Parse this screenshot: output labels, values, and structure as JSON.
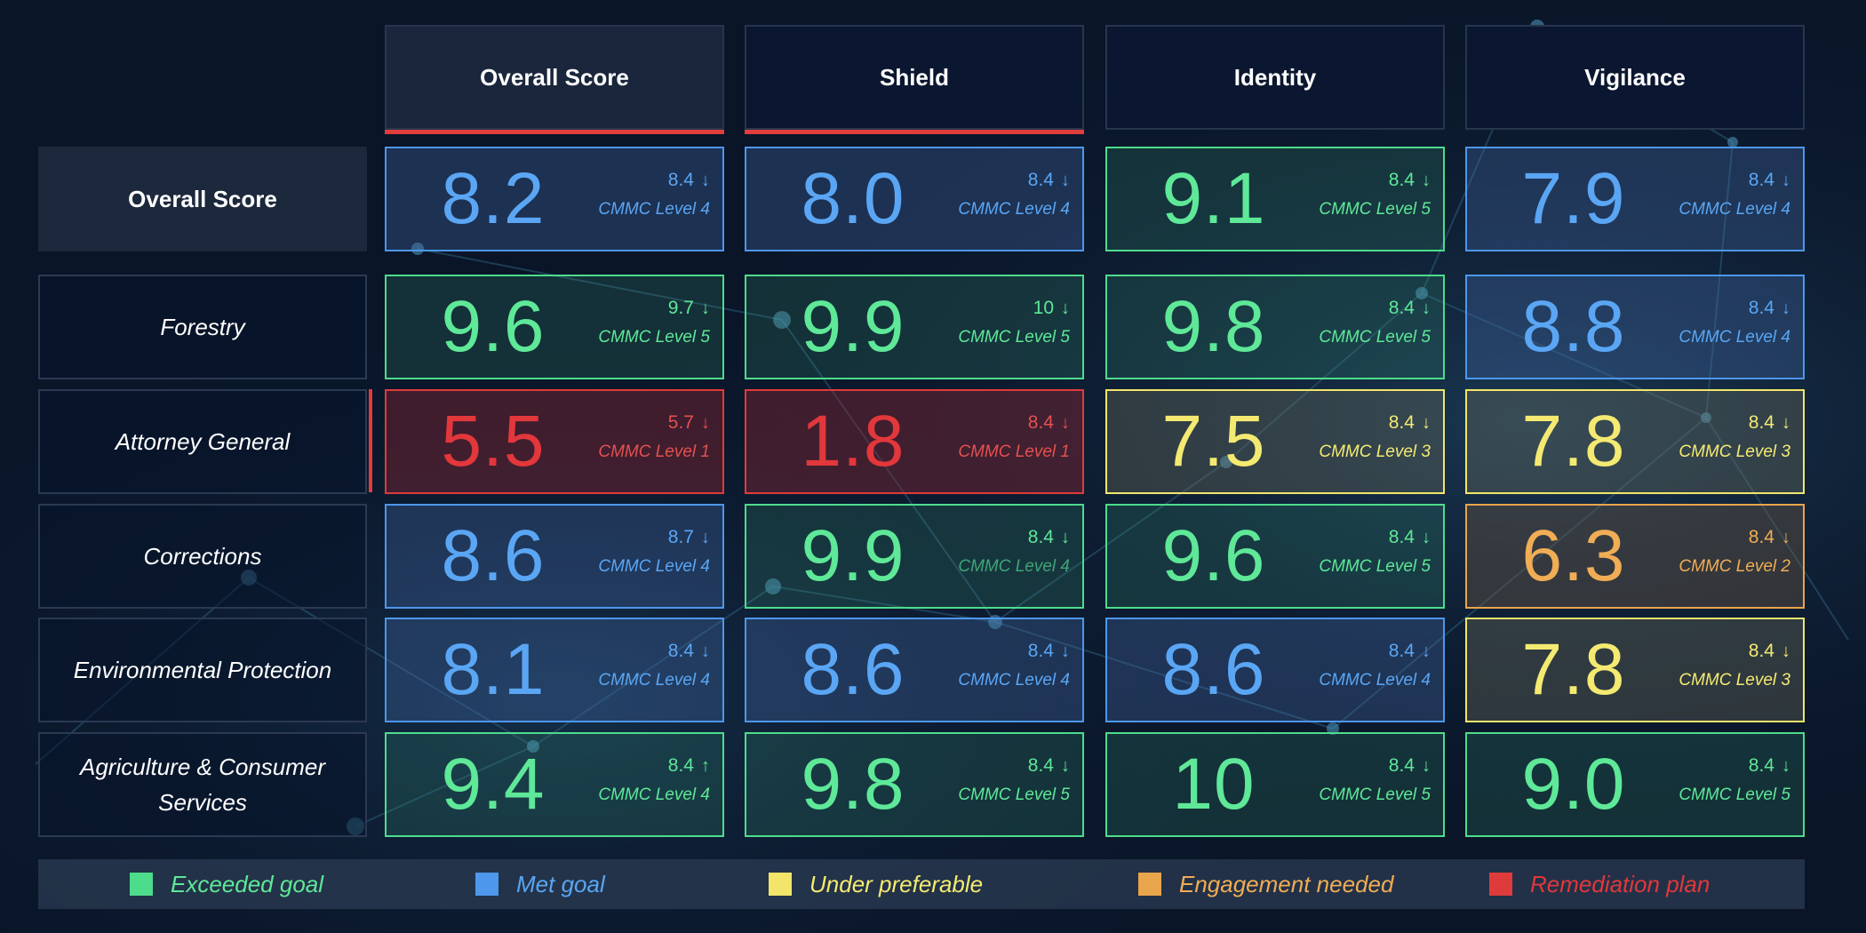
{
  "colors": {
    "exceeded": "#4ddc8b",
    "met": "#4d97ec",
    "under": "#f2e56a",
    "engagement": "#e8a54c",
    "remediation": "#e03b3b"
  },
  "columns": [
    {
      "label": "Overall Score"
    },
    {
      "label": "Shield"
    },
    {
      "label": "Identity"
    },
    {
      "label": "Vigilance"
    }
  ],
  "rows": [
    {
      "label": "Overall Score",
      "cells": [
        {
          "value": "8.2",
          "delta": "8.4",
          "arrow": "down",
          "level": "CMMC Level 4",
          "status": "met"
        },
        {
          "value": "8.0",
          "delta": "8.4",
          "arrow": "down",
          "level": "CMMC Level 4",
          "status": "met"
        },
        {
          "value": "9.1",
          "delta": "8.4",
          "arrow": "down",
          "level": "CMMC Level 5",
          "status": "exceeded"
        },
        {
          "value": "7.9",
          "delta": "8.4",
          "arrow": "down",
          "level": "CMMC Level 4",
          "status": "met"
        }
      ]
    },
    {
      "label": "Forestry",
      "cells": [
        {
          "value": "9.6",
          "delta": "9.7",
          "arrow": "down",
          "level": "CMMC Level 5",
          "status": "exceeded"
        },
        {
          "value": "9.9",
          "delta": "10",
          "arrow": "down",
          "level": "CMMC Level 5",
          "status": "exceeded"
        },
        {
          "value": "9.8",
          "delta": "8.4",
          "arrow": "down",
          "level": "CMMC Level 5",
          "status": "exceeded"
        },
        {
          "value": "8.8",
          "delta": "8.4",
          "arrow": "down",
          "level": "CMMC Level 4",
          "status": "met"
        }
      ]
    },
    {
      "label": "Attorney General",
      "cells": [
        {
          "value": "5.5",
          "delta": "5.7",
          "arrow": "down",
          "level": "CMMC Level 1",
          "status": "remediation"
        },
        {
          "value": "1.8",
          "delta": "8.4",
          "arrow": "down",
          "level": "CMMC Level 1",
          "status": "remediation"
        },
        {
          "value": "7.5",
          "delta": "8.4",
          "arrow": "down",
          "level": "CMMC Level 3",
          "status": "under"
        },
        {
          "value": "7.8",
          "delta": "8.4",
          "arrow": "down",
          "level": "CMMC Level 3",
          "status": "under"
        }
      ]
    },
    {
      "label": "Corrections",
      "cells": [
        {
          "value": "8.6",
          "delta": "8.7",
          "arrow": "down",
          "level": "CMMC Level 4",
          "status": "met"
        },
        {
          "value": "9.9",
          "delta": "8.4",
          "arrow": "down",
          "level": "CMMC Level 4",
          "status": "exceeded",
          "muted_level": true
        },
        {
          "value": "9.6",
          "delta": "8.4",
          "arrow": "down",
          "level": "CMMC Level 5",
          "status": "exceeded"
        },
        {
          "value": "6.3",
          "delta": "8.4",
          "arrow": "down",
          "level": "CMMC Level 2",
          "status": "engagement"
        }
      ]
    },
    {
      "label": "Environmental Protection",
      "cells": [
        {
          "value": "8.1",
          "delta": "8.4",
          "arrow": "down",
          "level": "CMMC Level 4",
          "status": "met"
        },
        {
          "value": "8.6",
          "delta": "8.4",
          "arrow": "down",
          "level": "CMMC Level 4",
          "status": "met"
        },
        {
          "value": "8.6",
          "delta": "8.4",
          "arrow": "down",
          "level": "CMMC Level 4",
          "status": "met"
        },
        {
          "value": "7.8",
          "delta": "8.4",
          "arrow": "down",
          "level": "CMMC Level 3",
          "status": "under"
        }
      ]
    },
    {
      "label": "Agriculture & Consumer Services",
      "cells": [
        {
          "value": "9.4",
          "delta": "8.4",
          "arrow": "up",
          "level": "CMMC Level 4",
          "status": "exceeded"
        },
        {
          "value": "9.8",
          "delta": "8.4",
          "arrow": "down",
          "level": "CMMC Level 5",
          "status": "exceeded"
        },
        {
          "value": "10",
          "delta": "8.4",
          "arrow": "down",
          "level": "CMMC Level 5",
          "status": "exceeded"
        },
        {
          "value": "9.0",
          "delta": "8.4",
          "arrow": "down",
          "level": "CMMC Level 5",
          "status": "exceeded"
        }
      ]
    }
  ],
  "legend": [
    {
      "label": "Exceeded goal",
      "status": "exceeded"
    },
    {
      "label": "Met goal",
      "status": "met"
    },
    {
      "label": "Under preferable",
      "status": "under"
    },
    {
      "label": "Engagement needed",
      "status": "engagement"
    },
    {
      "label": "Remediation plan",
      "status": "remediation"
    }
  ]
}
